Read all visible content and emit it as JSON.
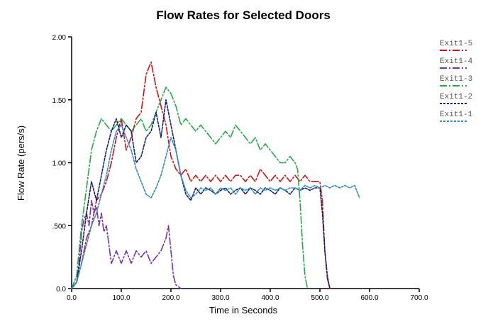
{
  "chart_data": {
    "type": "line",
    "title": "Flow Rates for Selected Doors",
    "xlabel": "Time in Seconds",
    "ylabel": "Flow Rate (pers/s)",
    "xlim": [
      0,
      700
    ],
    "ylim": [
      0,
      2
    ],
    "x_ticks": [
      0,
      100,
      200,
      300,
      400,
      500,
      600,
      700
    ],
    "x_tick_labels": [
      "0.0",
      "100.0",
      "200.0",
      "300.0",
      "400.0",
      "500.0",
      "600.0",
      "700.0"
    ],
    "y_ticks": [
      0,
      0.5,
      1.0,
      1.5,
      2.0
    ],
    "y_tick_labels": [
      "0.0",
      ".500",
      "1.00",
      "1.50",
      "2.00"
    ],
    "grid": false,
    "legend_position": "top-right",
    "series": [
      {
        "name": "Exit1-5",
        "color": "#cc1111",
        "dash": "10,3,2,3",
        "points": [
          [
            0,
            0
          ],
          [
            10,
            0.05
          ],
          [
            20,
            0.2
          ],
          [
            30,
            0.4
          ],
          [
            40,
            0.5
          ],
          [
            50,
            0.7
          ],
          [
            60,
            0.75
          ],
          [
            70,
            0.85
          ],
          [
            80,
            1.0
          ],
          [
            90,
            1.2
          ],
          [
            100,
            1.35
          ],
          [
            110,
            1.1
          ],
          [
            120,
            1.2
          ],
          [
            130,
            1.35
          ],
          [
            140,
            1.4
          ],
          [
            150,
            1.7
          ],
          [
            160,
            1.8
          ],
          [
            170,
            1.6
          ],
          [
            180,
            1.45
          ],
          [
            190,
            1.3
          ],
          [
            200,
            1.05
          ],
          [
            210,
            0.95
          ],
          [
            220,
            0.9
          ],
          [
            230,
            0.95
          ],
          [
            240,
            0.85
          ],
          [
            250,
            0.9
          ],
          [
            260,
            0.85
          ],
          [
            270,
            0.9
          ],
          [
            280,
            0.85
          ],
          [
            290,
            0.9
          ],
          [
            300,
            0.85
          ],
          [
            310,
            0.9
          ],
          [
            320,
            0.85
          ],
          [
            330,
            0.9
          ],
          [
            340,
            0.9
          ],
          [
            350,
            0.85
          ],
          [
            360,
            0.9
          ],
          [
            370,
            0.85
          ],
          [
            380,
            0.95
          ],
          [
            390,
            0.9
          ],
          [
            400,
            0.85
          ],
          [
            410,
            0.9
          ],
          [
            420,
            0.85
          ],
          [
            430,
            0.9
          ],
          [
            440,
            0.85
          ],
          [
            450,
            0.9
          ],
          [
            460,
            0.85
          ],
          [
            470,
            0.9
          ],
          [
            480,
            0.85
          ],
          [
            490,
            0.85
          ],
          [
            500,
            0.85
          ],
          [
            505,
            0.7
          ],
          [
            510,
            0.3
          ],
          [
            515,
            0.08
          ],
          [
            520,
            0
          ]
        ]
      },
      {
        "name": "Exit1-4",
        "color": "#7733aa",
        "dash": "10,3,2,3",
        "points": [
          [
            0,
            0
          ],
          [
            10,
            0.05
          ],
          [
            15,
            0.2
          ],
          [
            20,
            0.45
          ],
          [
            25,
            0.55
          ],
          [
            30,
            0.6
          ],
          [
            35,
            0.5
          ],
          [
            40,
            0.7
          ],
          [
            45,
            0.6
          ],
          [
            50,
            0.65
          ],
          [
            55,
            0.5
          ],
          [
            60,
            0.6
          ],
          [
            65,
            0.45
          ],
          [
            70,
            0.5
          ],
          [
            75,
            0.35
          ],
          [
            80,
            0.2
          ],
          [
            90,
            0.3
          ],
          [
            100,
            0.2
          ],
          [
            110,
            0.3
          ],
          [
            120,
            0.2
          ],
          [
            130,
            0.3
          ],
          [
            140,
            0.25
          ],
          [
            150,
            0.3
          ],
          [
            160,
            0.2
          ],
          [
            170,
            0.25
          ],
          [
            180,
            0.3
          ],
          [
            190,
            0.4
          ],
          [
            195,
            0.5
          ],
          [
            200,
            0.3
          ],
          [
            205,
            0.1
          ],
          [
            210,
            0.03
          ],
          [
            220,
            0
          ]
        ]
      },
      {
        "name": "Exit1-3",
        "color": "#22aa44",
        "dash": "10,3,2,3",
        "points": [
          [
            0,
            0
          ],
          [
            10,
            0.1
          ],
          [
            20,
            0.5
          ],
          [
            30,
            0.8
          ],
          [
            40,
            1.1
          ],
          [
            50,
            1.25
          ],
          [
            60,
            1.35
          ],
          [
            70,
            1.3
          ],
          [
            80,
            1.25
          ],
          [
            90,
            1.3
          ],
          [
            100,
            1.35
          ],
          [
            110,
            1.3
          ],
          [
            120,
            1.25
          ],
          [
            130,
            1.3
          ],
          [
            140,
            1.35
          ],
          [
            150,
            1.25
          ],
          [
            160,
            1.3
          ],
          [
            170,
            1.4
          ],
          [
            180,
            1.5
          ],
          [
            190,
            1.6
          ],
          [
            200,
            1.55
          ],
          [
            210,
            1.45
          ],
          [
            220,
            1.3
          ],
          [
            230,
            1.35
          ],
          [
            240,
            1.3
          ],
          [
            250,
            1.25
          ],
          [
            260,
            1.3
          ],
          [
            270,
            1.25
          ],
          [
            280,
            1.2
          ],
          [
            290,
            1.15
          ],
          [
            300,
            1.2
          ],
          [
            310,
            1.25
          ],
          [
            320,
            1.2
          ],
          [
            330,
            1.3
          ],
          [
            340,
            1.25
          ],
          [
            350,
            1.2
          ],
          [
            360,
            1.15
          ],
          [
            370,
            1.2
          ],
          [
            380,
            1.1
          ],
          [
            390,
            1.15
          ],
          [
            400,
            1.1
          ],
          [
            410,
            1.05
          ],
          [
            420,
            1.0
          ],
          [
            430,
            1.0
          ],
          [
            440,
            1.05
          ],
          [
            450,
            1.0
          ],
          [
            455,
            0.95
          ],
          [
            460,
            0.7
          ],
          [
            465,
            0.35
          ],
          [
            470,
            0.1
          ],
          [
            475,
            0
          ]
        ]
      },
      {
        "name": "Exit1-2",
        "color": "#112266",
        "dash": "3,2",
        "points": [
          [
            0,
            0
          ],
          [
            10,
            0.05
          ],
          [
            20,
            0.3
          ],
          [
            30,
            0.6
          ],
          [
            40,
            0.85
          ],
          [
            50,
            0.7
          ],
          [
            60,
            0.9
          ],
          [
            70,
            1.1
          ],
          [
            80,
            1.25
          ],
          [
            90,
            1.35
          ],
          [
            100,
            1.2
          ],
          [
            110,
            1.3
          ],
          [
            120,
            1.25
          ],
          [
            130,
            1.0
          ],
          [
            140,
            1.05
          ],
          [
            150,
            1.2
          ],
          [
            160,
            1.25
          ],
          [
            170,
            1.4
          ],
          [
            180,
            1.2
          ],
          [
            190,
            1.5
          ],
          [
            200,
            1.3
          ],
          [
            210,
            1.1
          ],
          [
            220,
            0.9
          ],
          [
            230,
            0.75
          ],
          [
            240,
            0.7
          ],
          [
            250,
            0.8
          ],
          [
            260,
            0.75
          ],
          [
            270,
            0.8
          ],
          [
            280,
            0.78
          ],
          [
            290,
            0.75
          ],
          [
            300,
            0.78
          ],
          [
            310,
            0.8
          ],
          [
            320,
            0.75
          ],
          [
            330,
            0.78
          ],
          [
            340,
            0.8
          ],
          [
            350,
            0.75
          ],
          [
            360,
            0.8
          ],
          [
            370,
            0.78
          ],
          [
            380,
            0.75
          ],
          [
            390,
            0.8
          ],
          [
            400,
            0.78
          ],
          [
            410,
            0.75
          ],
          [
            420,
            0.8
          ],
          [
            430,
            0.78
          ],
          [
            440,
            0.75
          ],
          [
            450,
            0.8
          ],
          [
            460,
            0.78
          ],
          [
            470,
            0.8
          ],
          [
            480,
            0.78
          ],
          [
            490,
            0.8
          ],
          [
            500,
            0.8
          ],
          [
            505,
            0.6
          ],
          [
            510,
            0.3
          ],
          [
            515,
            0.1
          ],
          [
            520,
            0
          ]
        ]
      },
      {
        "name": "Exit1-1",
        "color": "#3388cc",
        "dash": "3,2",
        "points": [
          [
            0,
            0
          ],
          [
            10,
            0.05
          ],
          [
            20,
            0.2
          ],
          [
            30,
            0.35
          ],
          [
            40,
            0.5
          ],
          [
            50,
            0.6
          ],
          [
            60,
            0.75
          ],
          [
            70,
            0.9
          ],
          [
            80,
            1.1
          ],
          [
            90,
            1.25
          ],
          [
            100,
            1.3
          ],
          [
            110,
            1.2
          ],
          [
            120,
            1.1
          ],
          [
            130,
            0.95
          ],
          [
            140,
            0.85
          ],
          [
            150,
            0.75
          ],
          [
            160,
            0.72
          ],
          [
            170,
            0.8
          ],
          [
            180,
            0.9
          ],
          [
            190,
            1.05
          ],
          [
            200,
            1.2
          ],
          [
            210,
            1.1
          ],
          [
            220,
            0.9
          ],
          [
            230,
            0.78
          ],
          [
            240,
            0.72
          ],
          [
            250,
            0.75
          ],
          [
            260,
            0.8
          ],
          [
            270,
            0.78
          ],
          [
            280,
            0.8
          ],
          [
            290,
            0.75
          ],
          [
            300,
            0.8
          ],
          [
            310,
            0.78
          ],
          [
            320,
            0.8
          ],
          [
            330,
            0.75
          ],
          [
            340,
            0.8
          ],
          [
            350,
            0.78
          ],
          [
            360,
            0.8
          ],
          [
            370,
            0.75
          ],
          [
            380,
            0.8
          ],
          [
            390,
            0.78
          ],
          [
            400,
            0.8
          ],
          [
            410,
            0.78
          ],
          [
            420,
            0.8
          ],
          [
            430,
            0.78
          ],
          [
            440,
            0.8
          ],
          [
            450,
            0.8
          ],
          [
            460,
            0.78
          ],
          [
            470,
            0.82
          ],
          [
            480,
            0.8
          ],
          [
            490,
            0.82
          ],
          [
            500,
            0.8
          ],
          [
            510,
            0.82
          ],
          [
            520,
            0.8
          ],
          [
            530,
            0.82
          ],
          [
            540,
            0.8
          ],
          [
            550,
            0.82
          ],
          [
            560,
            0.8
          ],
          [
            570,
            0.82
          ],
          [
            580,
            0.72
          ]
        ]
      }
    ]
  }
}
